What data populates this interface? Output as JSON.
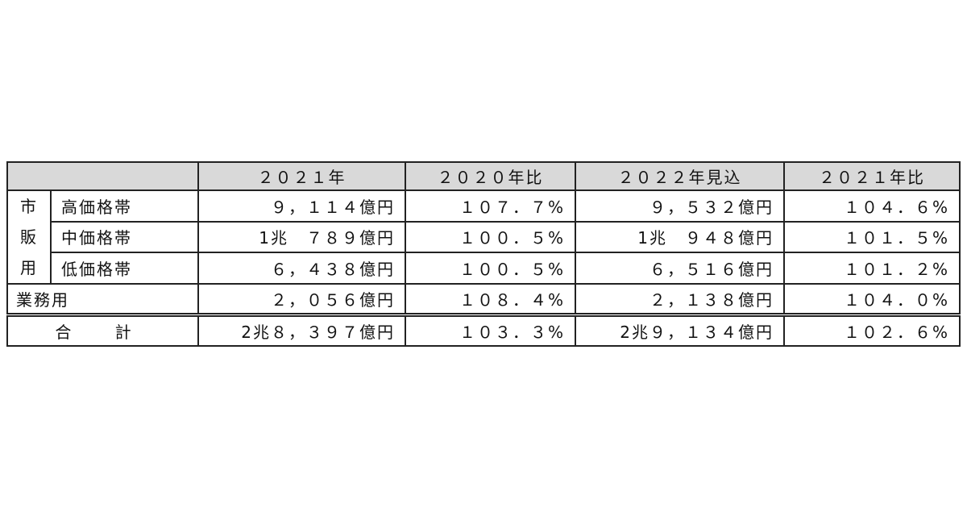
{
  "table": {
    "headers": [
      "",
      "２０２１年",
      "２０２０年比",
      "２０２２年見込",
      "２０２１年比"
    ],
    "group_label": [
      "市",
      "販",
      "用"
    ],
    "rows": [
      {
        "label": "高価格帯",
        "v2021": "９，１１４億円",
        "r2020": "１０７．７%",
        "v2022": "９，５３２億円",
        "r2021": "１０４．６%"
      },
      {
        "label": "中価格帯",
        "v2021": "1兆　７８９億円",
        "r2020": "１００．５%",
        "v2022": "1兆　９４８億円",
        "r2021": "１０１．５%"
      },
      {
        "label": "低価格帯",
        "v2021": "６，４３８億円",
        "r2020": "１００．５%",
        "v2022": "６，５１６億円",
        "r2021": "１０１．２%"
      },
      {
        "label": "業務用",
        "v2021": "２，０５６億円",
        "r2020": "１０８．４%",
        "v2022": "２，１３８億円",
        "r2021": "１０４．０%"
      },
      {
        "label": "合 計",
        "v2021": "2兆８，３９７億円",
        "r2020": "１０３．３%",
        "v2022": "2兆９，１３４億円",
        "r2021": "１０２．６%"
      }
    ]
  }
}
